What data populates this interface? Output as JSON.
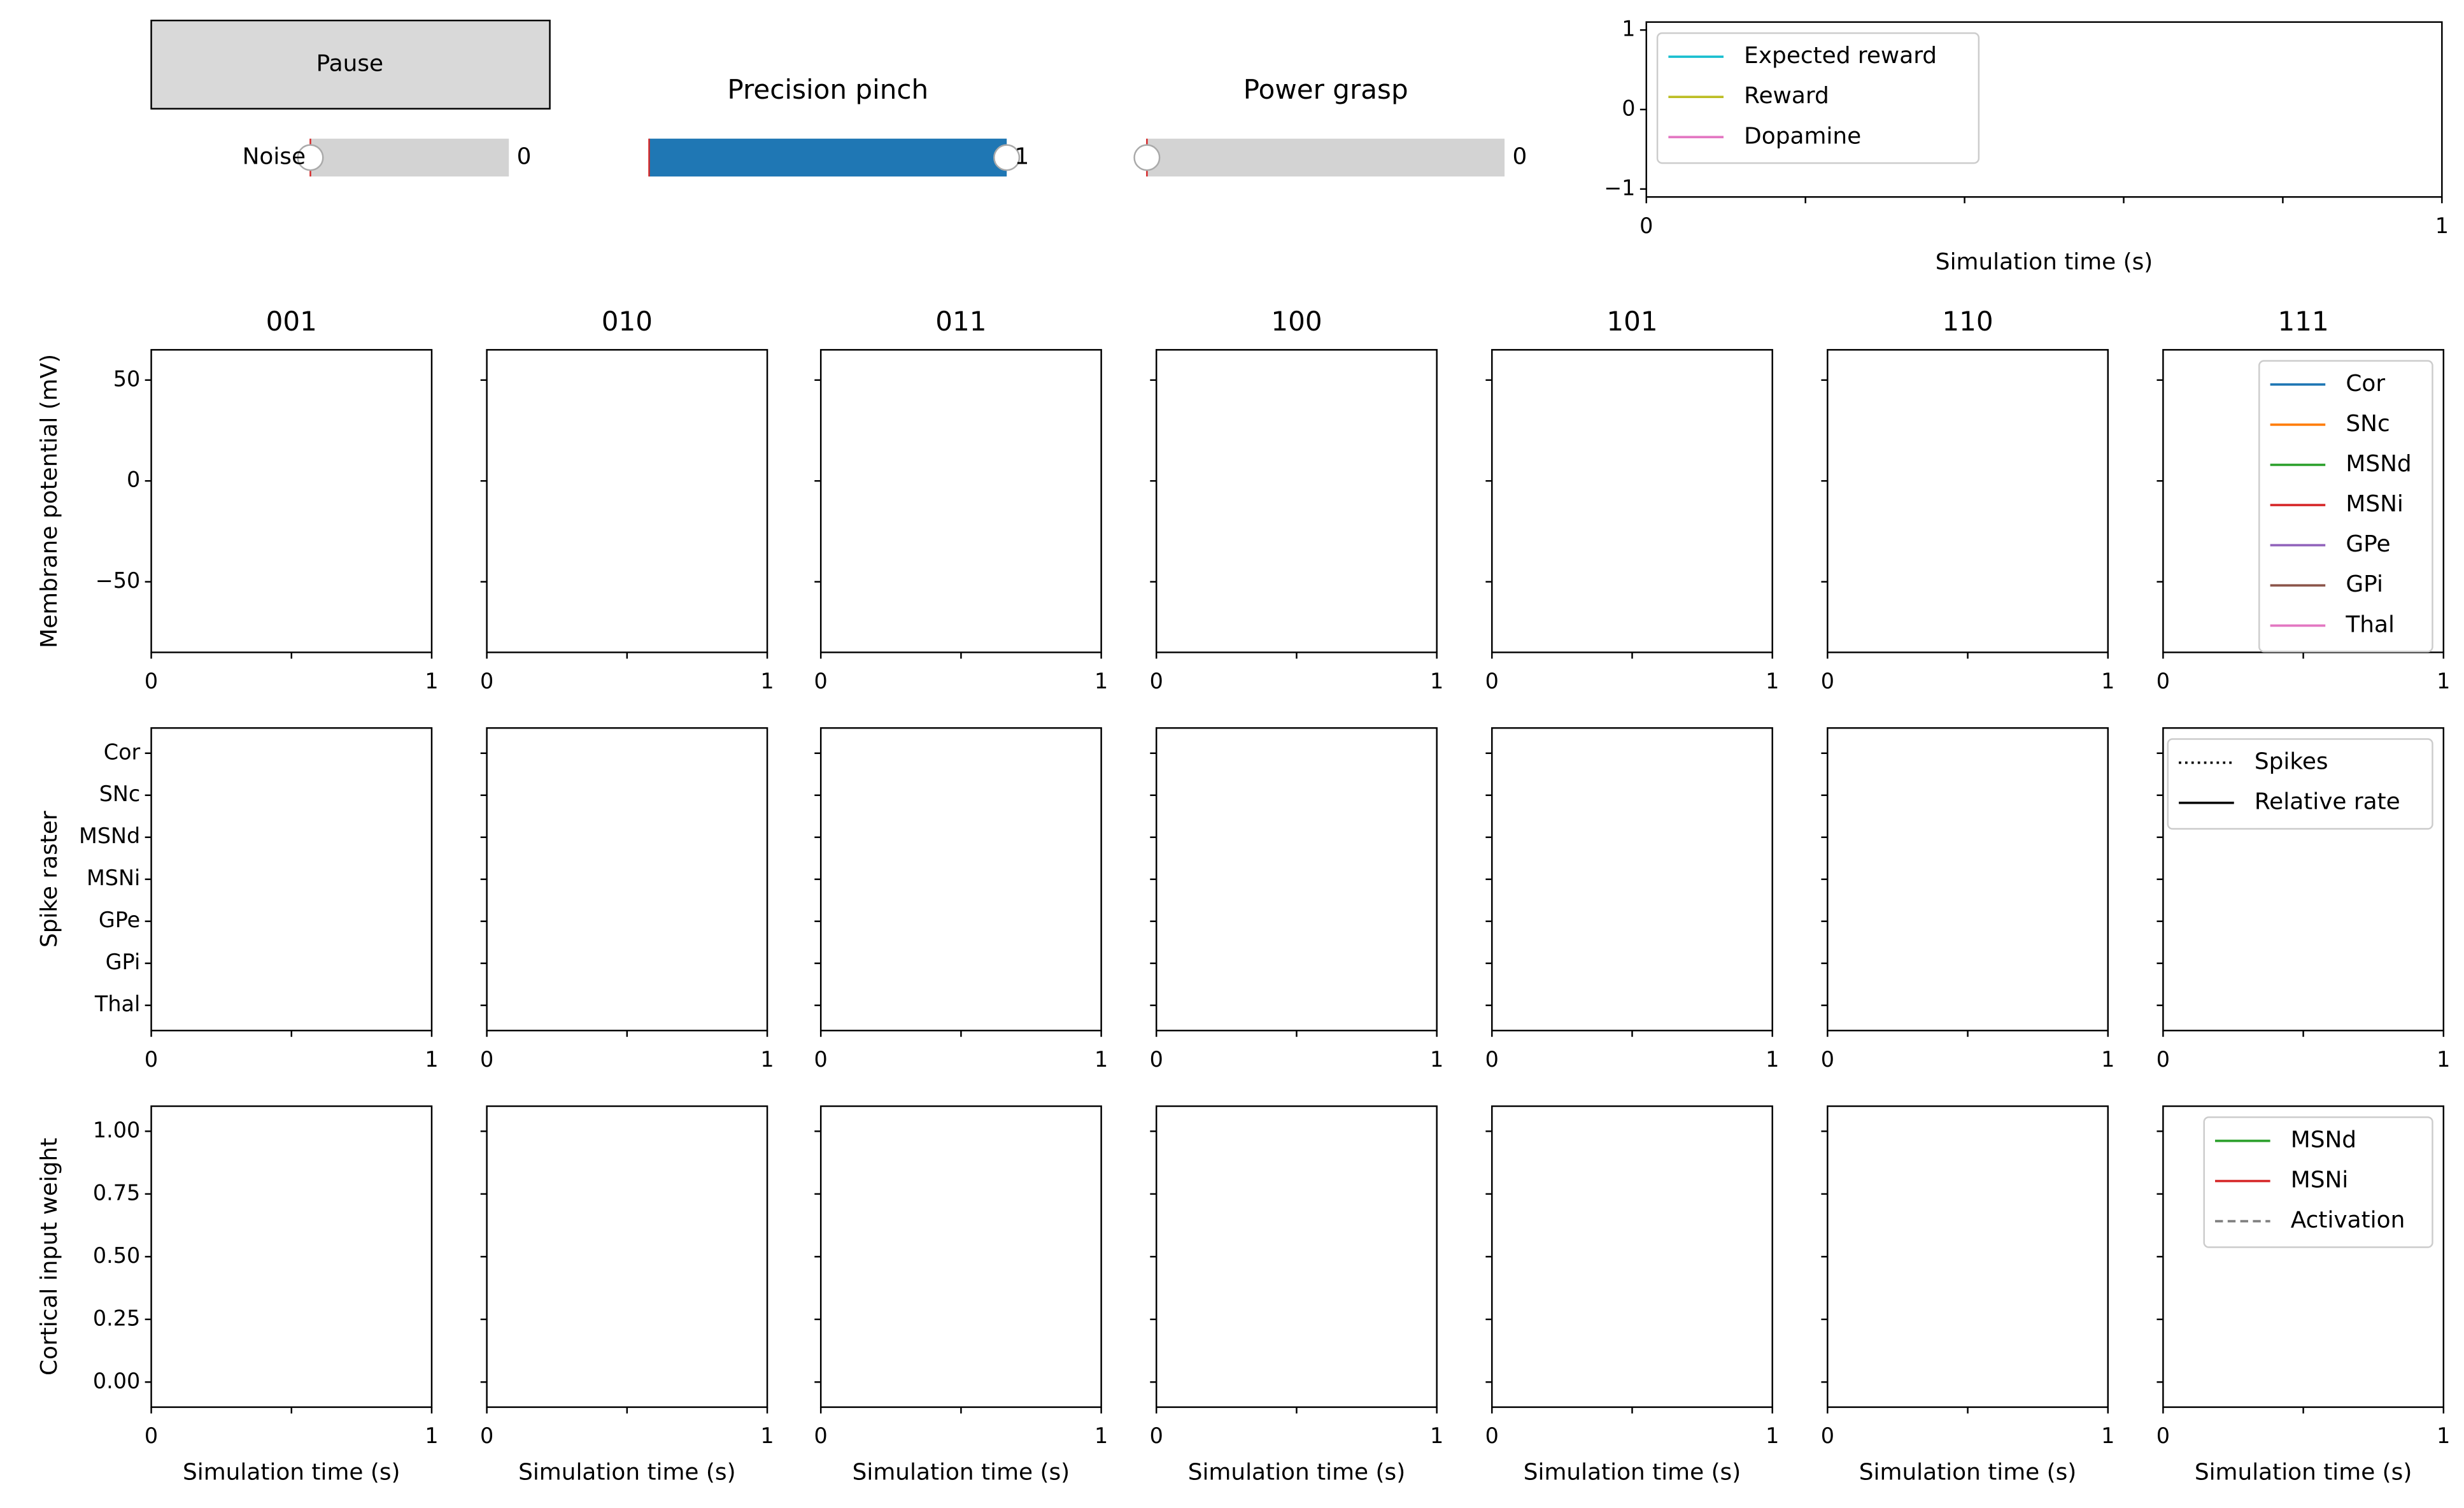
{
  "button": {
    "label": "Pause"
  },
  "sliders": [
    {
      "label": "Noise",
      "value": 0,
      "value_label": "0",
      "range": [
        0,
        1
      ],
      "initial": 0,
      "color": "#1f77b4"
    },
    {
      "title": "Precision pinch",
      "value": 1,
      "value_label": "1",
      "range": [
        0,
        1
      ],
      "initial": 0,
      "color": "#1f77b4"
    },
    {
      "title": "Power grasp",
      "value": 0,
      "value_label": "0",
      "range": [
        0,
        1
      ],
      "initial": 0,
      "color": "#1f77b4"
    }
  ],
  "reward_chart": {
    "type": "line",
    "xlabel": "Simulation time (s)",
    "xlim": [
      0,
      1
    ],
    "xticks": [
      0,
      1
    ],
    "xminor": [
      0.2,
      0.4,
      0.6,
      0.8
    ],
    "ylim": [
      -1.1,
      1.1
    ],
    "yticks": [
      {
        "value": -1,
        "label": "−1"
      },
      0,
      1
    ],
    "legend": "upper left",
    "series": [
      {
        "name": "Expected reward",
        "color": "#17becf"
      },
      {
        "name": "Reward",
        "color": "#bcbd22"
      },
      {
        "name": "Dopamine",
        "color": "#e377c2"
      }
    ]
  },
  "panels": {
    "titles": [
      "001",
      "010",
      "011",
      "100",
      "101",
      "110",
      "111"
    ],
    "xlim": [
      0,
      1
    ],
    "xticks": [
      0,
      1
    ],
    "xminor": [
      0.5
    ],
    "xlabel": "Simulation time (s)",
    "rows": [
      {
        "ylabel": "Membrane potential (mV)",
        "ylim": [
          -85,
          65
        ],
        "yticks": [
          {
            "value": -50,
            "label": "−50"
          },
          0,
          50
        ],
        "legend": "upper right",
        "series": [
          {
            "name": "Cor",
            "color": "#1f77b4"
          },
          {
            "name": "SNc",
            "color": "#ff7f0e"
          },
          {
            "name": "MSNd",
            "color": "#2ca02c"
          },
          {
            "name": "MSNi",
            "color": "#d62728"
          },
          {
            "name": "GPe",
            "color": "#9467bd"
          },
          {
            "name": "GPi",
            "color": "#8c564b"
          },
          {
            "name": "Thal",
            "color": "#e377c2"
          }
        ]
      },
      {
        "ylabel": "Spike raster",
        "ycategories": [
          "Cor",
          "SNc",
          "MSNd",
          "MSNi",
          "GPe",
          "GPi",
          "Thal"
        ],
        "legend": "upper right",
        "series": [
          {
            "name": "Spikes",
            "color": "#000000",
            "dash": "dotted"
          },
          {
            "name": "Relative rate",
            "color": "#000000"
          }
        ]
      },
      {
        "ylabel": "Cortical input weight",
        "ylim": [
          -0.1,
          1.1
        ],
        "yticks": [
          {
            "value": 0,
            "label": "0.00"
          },
          {
            "value": 0.25,
            "label": "0.25"
          },
          {
            "value": 0.5,
            "label": "0.50"
          },
          {
            "value": 0.75,
            "label": "0.75"
          },
          {
            "value": 1,
            "label": "1.00"
          }
        ],
        "legend": "upper right",
        "series": [
          {
            "name": "MSNd",
            "color": "#2ca02c"
          },
          {
            "name": "MSNi",
            "color": "#d62728"
          },
          {
            "name": "Activation",
            "color": "#808080",
            "dash": "dashed"
          }
        ]
      }
    ]
  }
}
